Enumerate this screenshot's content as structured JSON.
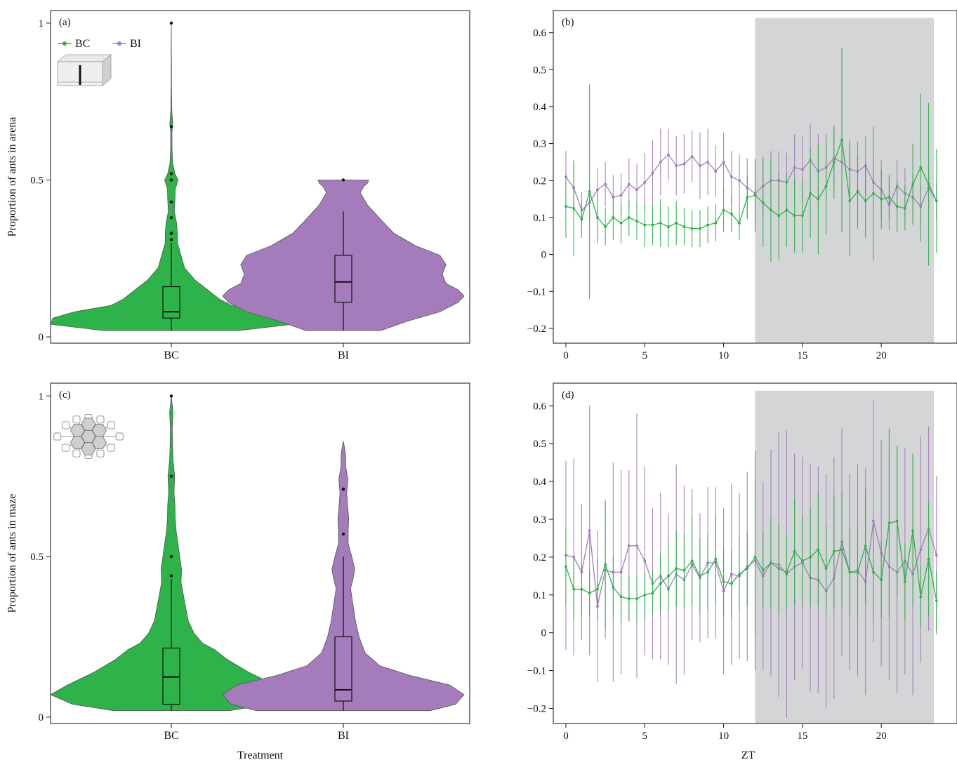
{
  "colors": {
    "bc": "#2eb24a",
    "bi": "#a47cbc",
    "dark_shade": "#d4d5d6"
  },
  "legend": {
    "bc": "BC",
    "bi": "BI"
  },
  "common": {
    "treatment_label": "Treatment",
    "zt_label": "ZT"
  },
  "chart_data": [
    {
      "type": "violin",
      "panel": "(a)",
      "ylabel": "Proportion of ants in arena",
      "xlabel": "",
      "categories": [
        "BC",
        "BI"
      ],
      "ylim": [
        -0.02,
        1.04
      ],
      "yticks": [
        0,
        0.5,
        1
      ],
      "yticklabels": [
        "0",
        "0.5",
        "1"
      ],
      "inset_icon": "arena-box-icon",
      "violins": [
        {
          "name": "BC",
          "min": 0.02,
          "q1": 0.06,
          "median": 0.08,
          "q3": 0.16,
          "whisker_high": 0.3,
          "outliers": [
            0.31,
            0.33,
            0.33,
            0.38,
            0.43,
            0.5,
            0.5,
            0.52,
            0.67,
            1.0
          ],
          "profile": [
            [
              0.02,
              0.56
            ],
            [
              0.04,
              1.0
            ],
            [
              0.06,
              0.98
            ],
            [
              0.08,
              0.8
            ],
            [
              0.1,
              0.5
            ],
            [
              0.12,
              0.4
            ],
            [
              0.15,
              0.3
            ],
            [
              0.18,
              0.2
            ],
            [
              0.22,
              0.11
            ],
            [
              0.26,
              0.08
            ],
            [
              0.3,
              0.05
            ],
            [
              0.33,
              0.05
            ],
            [
              0.36,
              0.045
            ],
            [
              0.4,
              0.025
            ],
            [
              0.44,
              0.03
            ],
            [
              0.47,
              0.032
            ],
            [
              0.5,
              0.055
            ],
            [
              0.52,
              0.03
            ],
            [
              0.55,
              0.012
            ],
            [
              0.6,
              0.006
            ],
            [
              0.65,
              0.005
            ],
            [
              0.68,
              0.012
            ],
            [
              0.72,
              0.004
            ],
            [
              0.8,
              0.002
            ],
            [
              0.9,
              0.001
            ],
            [
              1.0,
              0.0
            ]
          ]
        },
        {
          "name": "BI",
          "min": 0.02,
          "q1": 0.11,
          "median": 0.175,
          "q3": 0.26,
          "whisker_high": 0.4,
          "outliers": [
            0.5
          ],
          "profile": [
            [
              0.02,
              0.31
            ],
            [
              0.05,
              0.53
            ],
            [
              0.08,
              0.8
            ],
            [
              0.11,
              0.95
            ],
            [
              0.13,
              1.0
            ],
            [
              0.15,
              0.95
            ],
            [
              0.17,
              0.85
            ],
            [
              0.2,
              0.82
            ],
            [
              0.23,
              0.85
            ],
            [
              0.26,
              0.8
            ],
            [
              0.29,
              0.6
            ],
            [
              0.33,
              0.42
            ],
            [
              0.37,
              0.32
            ],
            [
              0.42,
              0.2
            ],
            [
              0.46,
              0.14
            ],
            [
              0.48,
              0.17
            ],
            [
              0.49,
              0.2
            ],
            [
              0.5,
              0.21
            ]
          ]
        }
      ]
    },
    {
      "type": "line",
      "panel": "(b)",
      "xlabel": "",
      "ylabel": "",
      "xlim": [
        -0.8,
        24.8
      ],
      "ylim": [
        -0.24,
        0.66
      ],
      "xticks": [
        0,
        5,
        10,
        15,
        20
      ],
      "xticklabels": [
        "0",
        "5",
        "10",
        "15",
        "20"
      ],
      "yticks": [
        -0.2,
        -0.1,
        0,
        0.1,
        0.2,
        0.3,
        0.4,
        0.5,
        0.6
      ],
      "yticklabels": [
        "−0.2",
        "−0.1",
        "0",
        "0.1",
        "0.2",
        "0.3",
        "0.4",
        "0.5",
        "0.6"
      ],
      "dark_period": [
        12,
        23.33
      ],
      "x": [
        0,
        0.5,
        1,
        1.5,
        2,
        2.5,
        3,
        3.5,
        4,
        4.5,
        5,
        5.5,
        6,
        6.5,
        7,
        7.5,
        8,
        8.5,
        9,
        9.5,
        10,
        10.5,
        11,
        11.5,
        12,
        12.5,
        13,
        13.5,
        14,
        14.5,
        15,
        15.5,
        16,
        16.5,
        17,
        17.5,
        18,
        18.5,
        19,
        19.5,
        20,
        20.5,
        21,
        21.5,
        22,
        22.5,
        23,
        23.5
      ],
      "series": [
        {
          "name": "BC",
          "values": [
            0.13,
            0.125,
            0.095,
            0.17,
            0.1,
            0.075,
            0.1,
            0.085,
            0.1,
            0.09,
            0.08,
            0.08,
            0.085,
            0.075,
            0.085,
            0.075,
            0.07,
            0.07,
            0.08,
            0.085,
            0.12,
            0.11,
            0.085,
            0.155,
            0.16,
            0.14,
            0.12,
            0.105,
            0.12,
            0.105,
            0.105,
            0.165,
            0.15,
            0.185,
            0.25,
            0.31,
            0.145,
            0.17,
            0.145,
            0.165,
            0.15,
            0.155,
            0.13,
            0.125,
            0.19,
            0.235,
            0.19,
            0.145
          ],
          "err": [
            0.085,
            0.13,
            0.05,
            0.29,
            0.07,
            0.05,
            0.06,
            0.055,
            0.05,
            0.05,
            0.06,
            0.055,
            0.065,
            0.055,
            0.06,
            0.05,
            0.05,
            0.05,
            0.05,
            0.05,
            0.06,
            0.05,
            0.045,
            0.06,
            0.1,
            0.12,
            0.14,
            0.12,
            0.1,
            0.1,
            0.1,
            0.12,
            0.15,
            0.13,
            0.1,
            0.25,
            0.15,
            0.1,
            0.1,
            0.18,
            0.08,
            0.06,
            0.07,
            0.06,
            0.11,
            0.2,
            0.22,
            0.14
          ]
        },
        {
          "name": "BI",
          "values": [
            0.21,
            0.18,
            0.12,
            0.14,
            0.175,
            0.19,
            0.155,
            0.16,
            0.19,
            0.175,
            0.195,
            0.22,
            0.25,
            0.27,
            0.24,
            0.245,
            0.265,
            0.24,
            0.25,
            0.225,
            0.25,
            0.21,
            0.2,
            0.18,
            0.165,
            0.185,
            0.2,
            0.2,
            0.195,
            0.235,
            0.23,
            0.255,
            0.225,
            0.235,
            0.26,
            0.25,
            0.23,
            0.225,
            0.24,
            0.195,
            0.175,
            0.135,
            0.185,
            0.165,
            0.155,
            0.13,
            0.18,
            0.145
          ],
          "err": [
            0.07,
            0.07,
            0.05,
            0.05,
            0.06,
            0.06,
            0.06,
            0.06,
            0.07,
            0.07,
            0.08,
            0.09,
            0.09,
            0.07,
            0.08,
            0.08,
            0.07,
            0.09,
            0.09,
            0.07,
            0.08,
            0.07,
            0.07,
            0.08,
            0.08,
            0.08,
            0.08,
            0.08,
            0.08,
            0.09,
            0.09,
            0.1,
            0.1,
            0.09,
            0.08,
            0.09,
            0.08,
            0.08,
            0.08,
            0.07,
            0.08,
            0.07,
            0.07,
            0.07,
            0.06,
            0.06,
            0.06,
            0.05
          ]
        }
      ]
    },
    {
      "type": "violin",
      "panel": "(c)",
      "ylabel": "Proportion of ants in maze",
      "xlabel": "Treatment",
      "categories": [
        "BC",
        "BI"
      ],
      "ylim": [
        -0.02,
        1.04
      ],
      "yticks": [
        0,
        0.5,
        1
      ],
      "yticklabels": [
        "0",
        "0.5",
        "1"
      ],
      "inset_icon": "hexagon-maze-icon",
      "violins": [
        {
          "name": "BC",
          "min": 0.02,
          "q1": 0.04,
          "median": 0.125,
          "q3": 0.215,
          "whisker_high": 0.43,
          "outliers": [
            0.44,
            0.5,
            0.75,
            1.0
          ],
          "profile": [
            [
              0.02,
              0.48
            ],
            [
              0.04,
              0.82
            ],
            [
              0.07,
              1.0
            ],
            [
              0.1,
              0.86
            ],
            [
              0.14,
              0.64
            ],
            [
              0.18,
              0.46
            ],
            [
              0.21,
              0.36
            ],
            [
              0.23,
              0.26
            ],
            [
              0.26,
              0.19
            ],
            [
              0.3,
              0.14
            ],
            [
              0.34,
              0.12
            ],
            [
              0.38,
              0.1
            ],
            [
              0.42,
              0.08
            ],
            [
              0.46,
              0.085
            ],
            [
              0.5,
              0.07
            ],
            [
              0.54,
              0.055
            ],
            [
              0.58,
              0.04
            ],
            [
              0.62,
              0.032
            ],
            [
              0.66,
              0.03
            ],
            [
              0.7,
              0.022
            ],
            [
              0.75,
              0.028
            ],
            [
              0.8,
              0.014
            ],
            [
              0.85,
              0.01
            ],
            [
              0.9,
              0.008
            ],
            [
              0.95,
              0.014
            ],
            [
              1.0,
              0.0
            ]
          ]
        },
        {
          "name": "BI",
          "min": 0.02,
          "q1": 0.05,
          "median": 0.085,
          "q3": 0.25,
          "whisker_high": 0.5,
          "outliers": [
            0.57,
            0.71
          ],
          "profile": [
            [
              0.02,
              0.72
            ],
            [
              0.04,
              0.93
            ],
            [
              0.07,
              1.0
            ],
            [
              0.1,
              0.88
            ],
            [
              0.13,
              0.55
            ],
            [
              0.16,
              0.3
            ],
            [
              0.2,
              0.18
            ],
            [
              0.25,
              0.13
            ],
            [
              0.3,
              0.1
            ],
            [
              0.35,
              0.08
            ],
            [
              0.4,
              0.06
            ],
            [
              0.43,
              0.08
            ],
            [
              0.46,
              0.095
            ],
            [
              0.5,
              0.07
            ],
            [
              0.54,
              0.04
            ],
            [
              0.58,
              0.04
            ],
            [
              0.62,
              0.045
            ],
            [
              0.66,
              0.035
            ],
            [
              0.7,
              0.028
            ],
            [
              0.74,
              0.038
            ],
            [
              0.78,
              0.02
            ],
            [
              0.82,
              0.018
            ],
            [
              0.86,
              0.0
            ]
          ]
        }
      ]
    },
    {
      "type": "line",
      "panel": "(d)",
      "xlabel": "ZT",
      "ylabel": "",
      "xlim": [
        -0.8,
        24.8
      ],
      "ylim": [
        -0.24,
        0.66
      ],
      "xticks": [
        0,
        5,
        10,
        15,
        20
      ],
      "xticklabels": [
        "0",
        "5",
        "10",
        "15",
        "20"
      ],
      "yticks": [
        -0.2,
        -0.1,
        0,
        0.1,
        0.2,
        0.3,
        0.4,
        0.5,
        0.6
      ],
      "yticklabels": [
        "−0.2",
        "−0.1",
        "0",
        "0.1",
        "0.2",
        "0.3",
        "0.4",
        "0.5",
        "0.6"
      ],
      "dark_period": [
        12,
        23.33
      ],
      "x": [
        0,
        0.5,
        1,
        1.5,
        2,
        2.5,
        3,
        3.5,
        4,
        4.5,
        5,
        5.5,
        6,
        6.5,
        7,
        7.5,
        8,
        8.5,
        9,
        9.5,
        10,
        10.5,
        11,
        11.5,
        12,
        12.5,
        13,
        13.5,
        14,
        14.5,
        15,
        15.5,
        16,
        16.5,
        17,
        17.5,
        18,
        18.5,
        19,
        19.5,
        20,
        20.5,
        21,
        21.5,
        22,
        22.5,
        23,
        23.5
      ],
      "series": [
        {
          "name": "BC",
          "values": [
            0.175,
            0.115,
            0.115,
            0.105,
            0.115,
            0.18,
            0.12,
            0.095,
            0.09,
            0.09,
            0.1,
            0.105,
            0.13,
            0.15,
            0.17,
            0.165,
            0.19,
            0.15,
            0.16,
            0.195,
            0.135,
            0.13,
            0.155,
            0.17,
            0.2,
            0.165,
            0.185,
            0.17,
            0.16,
            0.215,
            0.19,
            0.2,
            0.22,
            0.17,
            0.215,
            0.22,
            0.16,
            0.16,
            0.23,
            0.16,
            0.14,
            0.29,
            0.295,
            0.135,
            0.27,
            0.095,
            0.195,
            0.085
          ],
          "err": [
            0.1,
            0.08,
            0.07,
            0.06,
            0.08,
            0.17,
            0.08,
            0.07,
            0.06,
            0.06,
            0.06,
            0.06,
            0.08,
            0.09,
            0.1,
            0.1,
            0.12,
            0.1,
            0.1,
            0.12,
            0.09,
            0.09,
            0.1,
            0.1,
            0.21,
            0.1,
            0.12,
            0.12,
            0.1,
            0.14,
            0.12,
            0.13,
            0.15,
            0.12,
            0.15,
            0.15,
            0.12,
            0.12,
            0.15,
            0.12,
            0.1,
            0.25,
            0.2,
            0.1,
            0.2,
            0.08,
            0.15,
            0.08
          ]
        },
        {
          "name": "BI",
          "values": [
            0.205,
            0.2,
            0.16,
            0.27,
            0.07,
            0.165,
            0.16,
            0.16,
            0.23,
            0.23,
            0.19,
            0.13,
            0.15,
            0.115,
            0.155,
            0.14,
            0.18,
            0.145,
            0.185,
            0.185,
            0.11,
            0.155,
            0.15,
            0.175,
            0.19,
            0.15,
            0.185,
            0.18,
            0.155,
            0.175,
            0.185,
            0.145,
            0.14,
            0.11,
            0.145,
            0.24,
            0.16,
            0.165,
            0.135,
            0.295,
            0.21,
            0.175,
            0.16,
            0.19,
            0.155,
            0.22,
            0.275,
            0.205
          ],
          "err": [
            0.25,
            0.26,
            0.18,
            0.33,
            0.2,
            0.18,
            0.29,
            0.27,
            0.2,
            0.35,
            0.25,
            0.2,
            0.22,
            0.2,
            0.29,
            0.25,
            0.2,
            0.17,
            0.2,
            0.2,
            0.22,
            0.24,
            0.22,
            0.25,
            0.29,
            0.25,
            0.3,
            0.35,
            0.38,
            0.3,
            0.28,
            0.3,
            0.3,
            0.31,
            0.32,
            0.3,
            0.26,
            0.28,
            0.3,
            0.32,
            0.3,
            0.3,
            0.32,
            0.3,
            0.32,
            0.3,
            0.27,
            0.21
          ]
        }
      ]
    }
  ]
}
